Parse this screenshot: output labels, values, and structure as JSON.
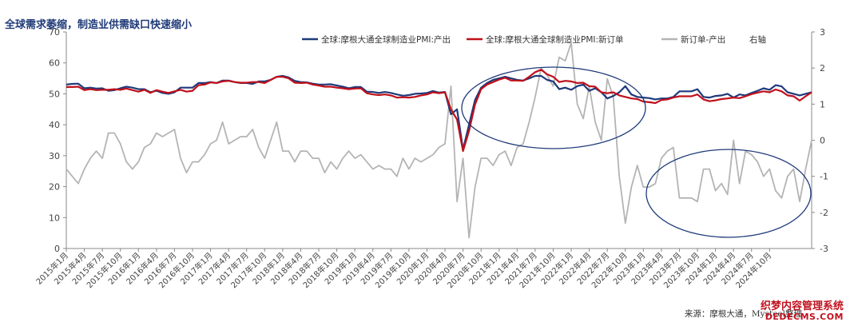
{
  "title": "全球需求萎缩，制造业供需缺口快速缩小",
  "source": "来源：摩根大通，Mysteel整理",
  "watermark": {
    "line1": "织梦内容管理系统",
    "line2": "DEDECMS.COM"
  },
  "chart_data": {
    "type": "line",
    "title": "全球需求萎缩，制造业供需缺口快速缩小",
    "ylim_left": [
      0,
      70
    ],
    "yticks_left": [
      0,
      10,
      20,
      30,
      40,
      50,
      60,
      70
    ],
    "ylim_right": [
      -3,
      3
    ],
    "yticks_right": [
      -3,
      -2,
      -1,
      0,
      1,
      2,
      3
    ],
    "right_axis_label": "右轴",
    "grid": false,
    "legend_position": "top",
    "start": "2015-01",
    "x_tick_labels": [
      "2015年1月",
      "2015年4月",
      "2015年7月",
      "2015年10月",
      "2016年1月",
      "2016年4月",
      "2016年7月",
      "2016年10月",
      "2017年1月",
      "2017年4月",
      "2017年7月",
      "2017年10月",
      "2018年1月",
      "2018年4月",
      "2018年7月",
      "2018年10月",
      "2019年1月",
      "2019年4月",
      "2019年7月",
      "2019年10月",
      "2020年1月",
      "2020年4月",
      "2020年7月",
      "2020年10月",
      "2021年1月",
      "2021年4月",
      "2021年7月",
      "2021年10月",
      "2022年1月",
      "2022年4月",
      "2022年7月",
      "2022年10月",
      "2023年1月",
      "2023年4月",
      "2023年7月",
      "2023年10月",
      "2024年1月",
      "2024年4月",
      "2024年7月",
      "2024年10月"
    ],
    "series": [
      {
        "name": "全球:摩根大通全球制造业PMI:产出",
        "axis": "left",
        "color": "#1f3a7a",
        "values": [
          53.0,
          53.2,
          53.3,
          51.8,
          52.0,
          51.7,
          51.8,
          51.0,
          51.2,
          51.8,
          52.3,
          52.0,
          51.5,
          51.5,
          50.5,
          51.0,
          50.3,
          50.0,
          50.5,
          52.0,
          52.0,
          52.0,
          53.5,
          53.5,
          53.8,
          53.5,
          54.3,
          54.3,
          53.8,
          53.5,
          53.5,
          53.2,
          54.0,
          54.0,
          54.5,
          55.5,
          55.8,
          55.3,
          54.2,
          53.8,
          53.7,
          53.3,
          53.0,
          53.0,
          53.1,
          52.7,
          52.3,
          51.8,
          52.2,
          52.2,
          50.7,
          50.6,
          50.3,
          50.6,
          50.3,
          49.8,
          49.4,
          49.6,
          50.0,
          50.1,
          50.3,
          50.9,
          50.4,
          50.6,
          43.4,
          45.0,
          32.0,
          40.0,
          48.0,
          52.0,
          53.5,
          54.5,
          55.0,
          55.5,
          55.0,
          54.5,
          54.3,
          55.0,
          55.8,
          55.8,
          54.5,
          54.0,
          51.5,
          52.0,
          51.3,
          52.5,
          53.0,
          51.0,
          51.8,
          50.5,
          48.5,
          49.3,
          50.5,
          52.5,
          49.8,
          49.0,
          48.8,
          48.6,
          48.2,
          48.5,
          48.5,
          49.0,
          50.8,
          50.8,
          50.8,
          51.5,
          49.0,
          48.8,
          49.3,
          49.5,
          50.0,
          48.8,
          49.8,
          49.5,
          50.3,
          51.0,
          51.8,
          51.3,
          52.8,
          52.4,
          50.5,
          50.0,
          49.5,
          50.0,
          50.5
        ]
      },
      {
        "name": "全球:摩根大通全球制造业PMI:新订单",
        "axis": "left",
        "color": "#c0101a",
        "values": [
          52.2,
          52.2,
          52.3,
          51.2,
          51.5,
          51.2,
          51.3,
          51.3,
          51.5,
          51.3,
          51.7,
          51.2,
          50.7,
          51.3,
          50.3,
          51.2,
          50.7,
          50.3,
          50.8,
          51.3,
          50.7,
          51.0,
          52.8,
          53.0,
          53.7,
          53.5,
          54.0,
          54.2,
          53.8,
          53.6,
          53.6,
          53.8,
          53.8,
          53.5,
          54.5,
          55.5,
          55.5,
          55.0,
          53.6,
          53.5,
          53.6,
          53.0,
          52.7,
          52.3,
          52.3,
          52.0,
          51.8,
          51.5,
          51.7,
          51.8,
          50.2,
          49.8,
          49.6,
          49.8,
          49.5,
          48.8,
          48.9,
          48.8,
          49.0,
          49.5,
          49.8,
          50.5,
          50.2,
          50.5,
          45.0,
          41.7,
          31.5,
          38.0,
          46.5,
          51.5,
          53.0,
          53.8,
          54.6,
          55.2,
          54.3,
          54.3,
          54.2,
          55.5,
          57.0,
          57.8,
          56.3,
          55.5,
          53.8,
          54.2,
          54.0,
          53.5,
          53.6,
          52.5,
          52.3,
          50.5,
          50.2,
          50.5,
          49.5,
          49.0,
          48.5,
          48.3,
          47.5,
          47.3,
          47.0,
          48.0,
          48.2,
          48.8,
          49.2,
          49.2,
          49.2,
          49.8,
          48.2,
          47.6,
          47.9,
          48.3,
          48.5,
          48.8,
          48.6,
          49.2,
          49.9,
          50.4,
          50.8,
          50.5,
          51.4,
          50.8,
          49.5,
          49.2,
          47.8,
          49.2,
          50.5
        ]
      },
      {
        "name": "新订单-产出",
        "axis": "right",
        "color": "#b4b4b4",
        "values": [
          -0.8,
          -1.0,
          -1.2,
          -0.8,
          -0.5,
          -0.3,
          -0.5,
          0.2,
          0.2,
          -0.1,
          -0.6,
          -0.8,
          -0.6,
          -0.2,
          -0.1,
          0.2,
          0.1,
          0.2,
          0.3,
          -0.5,
          -0.9,
          -0.6,
          -0.6,
          -0.4,
          -0.1,
          0.0,
          0.5,
          -0.1,
          0.0,
          0.1,
          0.1,
          0.3,
          -0.2,
          -0.5,
          0.0,
          0.5,
          -0.3,
          -0.3,
          -0.6,
          -0.3,
          -0.3,
          -0.5,
          -0.5,
          -0.9,
          -0.6,
          -0.8,
          -0.5,
          -0.3,
          -0.5,
          -0.4,
          -0.6,
          -0.8,
          -0.7,
          -0.8,
          -0.8,
          -1.0,
          -0.5,
          -0.8,
          -0.5,
          -0.6,
          -0.5,
          -0.4,
          -0.2,
          -0.1,
          1.5,
          -1.7,
          -0.5,
          -2.7,
          -1.3,
          -0.5,
          -0.5,
          -0.7,
          -0.4,
          -0.3,
          -0.7,
          -0.2,
          -0.1,
          0.5,
          1.2,
          2.0,
          1.8,
          1.5,
          2.3,
          2.2,
          2.7,
          1.0,
          0.6,
          1.5,
          0.5,
          0.0,
          1.7,
          1.2,
          -1.0,
          -2.3,
          -1.3,
          -0.7,
          -1.3,
          -1.3,
          -1.2,
          -0.5,
          -0.3,
          -0.2,
          -1.6,
          -1.6,
          -1.6,
          -1.7,
          -0.8,
          -0.8,
          -1.4,
          -1.2,
          -1.5,
          0.0,
          -1.2,
          -0.3,
          -0.4,
          -0.6,
          -1.0,
          -0.8,
          -1.4,
          -1.6,
          -1.0,
          -0.8,
          -1.7,
          -0.8,
          0.0
        ]
      }
    ],
    "annotations": [
      "ellipse around 2020-10 to 2022-07 output/new-order peak",
      "ellipse around 2022-09 to 2024-08 spread"
    ]
  }
}
